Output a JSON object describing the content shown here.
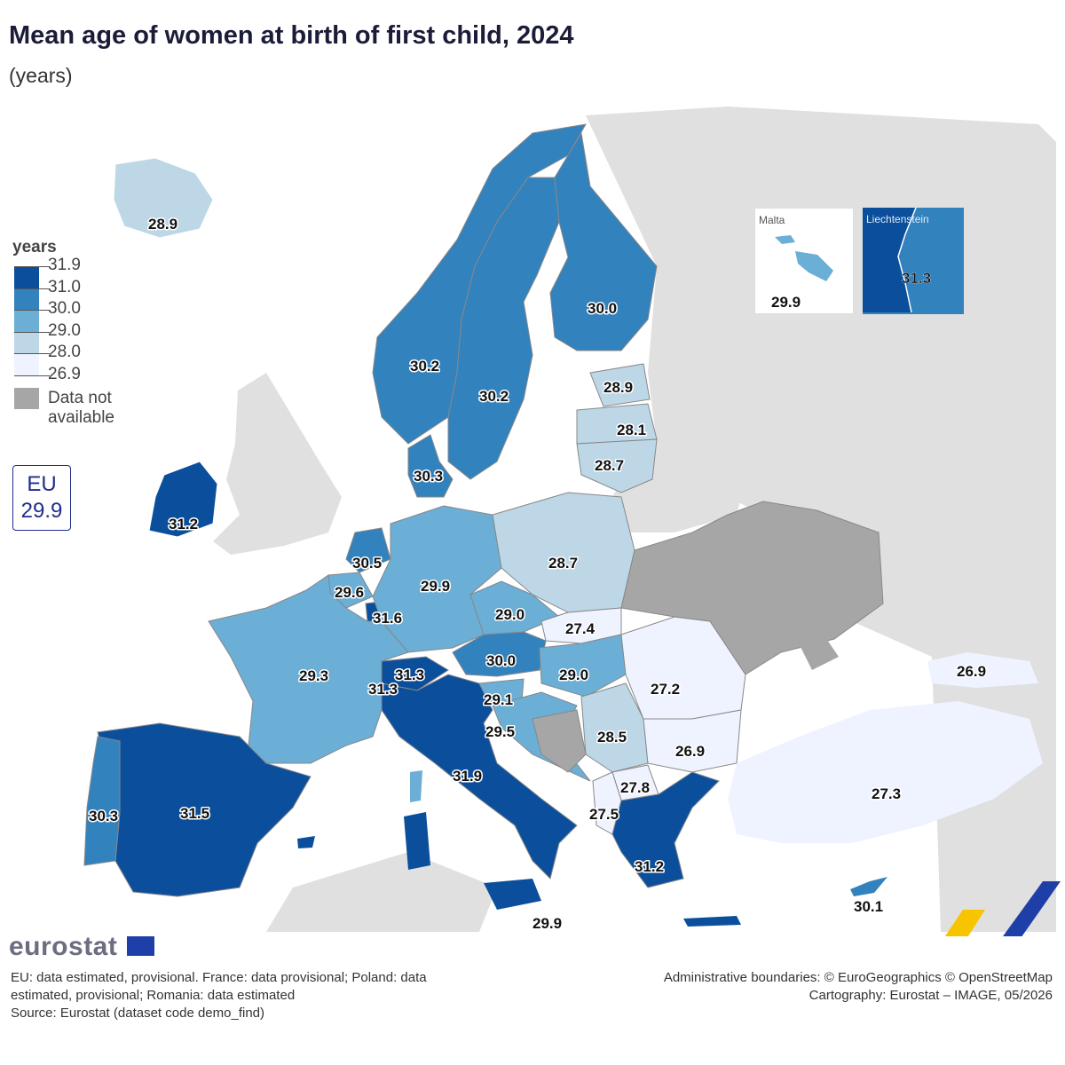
{
  "title": "Mean age of women at birth of first child, 2024",
  "subtitle": "(years)",
  "legend": {
    "title": "years",
    "bins": [
      {
        "label": "31.9",
        "color": "#0b4f9c"
      },
      {
        "label": "31.0",
        "color": "#3282be"
      },
      {
        "label": "30.0",
        "color": "#6baed6"
      },
      {
        "label": "29.0",
        "color": "#bdd7e7"
      },
      {
        "label": "28.0",
        "color": "#eff3ff"
      },
      {
        "label": "26.9",
        "color": ""
      }
    ],
    "na_label": "Data not available",
    "na_color": "#a6a6a6"
  },
  "eu_box": {
    "label": "EU",
    "value": "29.9"
  },
  "insets": {
    "malta": {
      "name": "Malta",
      "value": "29.9"
    },
    "liechtenstein": {
      "name": "Liechtenstein",
      "value": "31.3"
    }
  },
  "map_values": {
    "iceland": "28.9",
    "norway": "30.2",
    "sweden": "30.2",
    "finland": "30.0",
    "estonia": "28.9",
    "latvia": "28.1",
    "lithuania": "28.7",
    "denmark": "30.3",
    "ireland": "31.2",
    "netherlands": "30.5",
    "belgium": "29.6",
    "luxembourg": "31.6",
    "germany": "29.9",
    "poland": "28.7",
    "czechia": "29.0",
    "slovakia": "27.4",
    "austria": "30.0",
    "switzerland": "31.3",
    "liechtenstein_main": "31.3",
    "hungary": "29.0",
    "slovenia": "29.1",
    "croatia": "29.5",
    "serbia": "28.5",
    "romania": "27.2",
    "bulgaria": "26.9",
    "north_macedonia": "27.8",
    "albania": "27.5",
    "greece": "31.2",
    "italy": "31.9",
    "malta_main": "29.9",
    "france": "29.3",
    "spain": "31.5",
    "portugal": "30.3",
    "turkey": "27.3",
    "georgia": "26.9",
    "cyprus": "30.1"
  },
  "colors": {
    "non_eu_land": "#e0e0e0",
    "sea": "#ffffff",
    "bin1": "#0b4f9c",
    "bin2": "#3282be",
    "bin3": "#6baed6",
    "bin4": "#bdd7e7",
    "bin5": "#eff3ff",
    "na": "#a6a6a6"
  },
  "footer": {
    "logo": "eurostat",
    "notes_line1": "EU: data estimated, provisional. France: data provisional; Poland: data estimated, provisional; Romania: data estimated",
    "source": "Source: Eurostat (dataset code demo_find)",
    "credits_line1": "Administrative boundaries: © EuroGeographics © OpenStreetMap",
    "credits_line2": "Cartography: Eurostat – IMAGE, 05/2026"
  }
}
